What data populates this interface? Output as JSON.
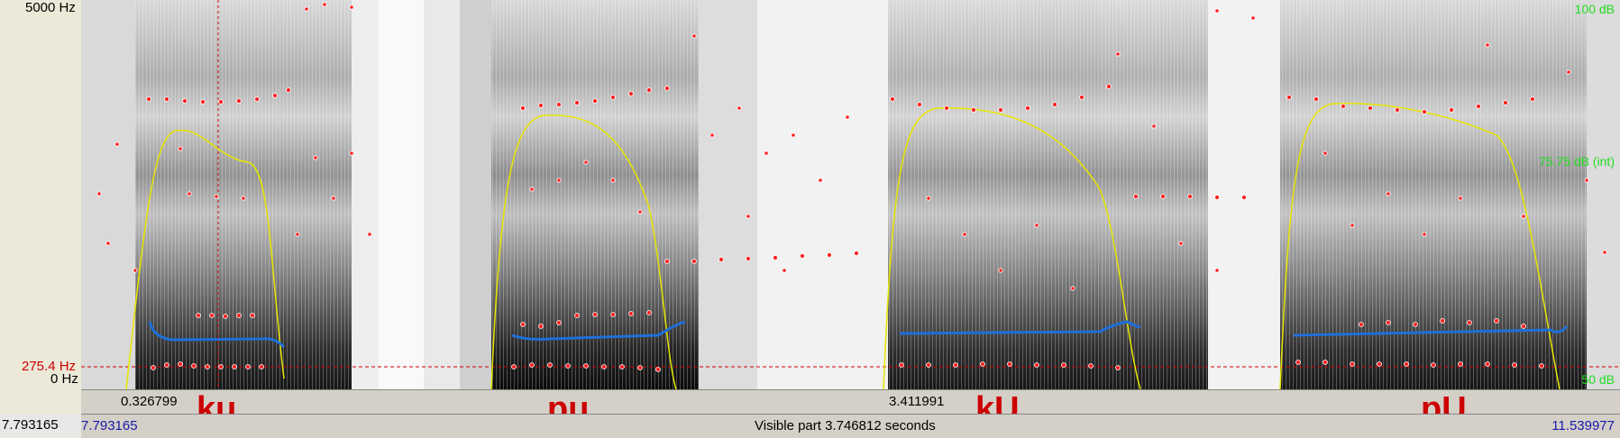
{
  "window": {
    "axis": {
      "freq_top": "5000 Hz",
      "freq_cursor": "275.4 Hz",
      "freq_bottom": "0 Hz",
      "right_top": "100 dB",
      "right_mid": "75.75 dB (int)",
      "right_bottom": "50 dB"
    },
    "time": {
      "cursor_left_label": "0.326799",
      "selection_mid_label": "3.411991",
      "left_total": "7.793165",
      "visible_start": "7.793165",
      "visible_part_label": "Visible part 3.746812 seconds",
      "visible_end": "11.539977"
    },
    "segments": [
      "ku",
      "pu",
      "kU",
      "pU"
    ],
    "colors": {
      "formant": "#ff2020",
      "pitch": "#1f6fd8",
      "intensity": "#e6e600",
      "cursor": "#cc0000",
      "segment_text": "#cc0000",
      "time_text": "#1a1aaa",
      "db_text": "#22dd22"
    }
  }
}
